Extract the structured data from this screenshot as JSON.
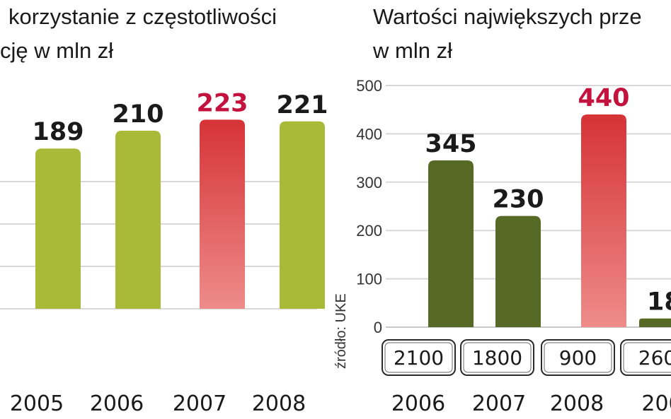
{
  "colors": {
    "olive": "#a9b938",
    "olive_top": "#c2cf55",
    "dark_olive": "#566a26",
    "dark_olive_top": "#6f8236",
    "red": "#d63336",
    "red_light": "#ee8c8a",
    "red_label": "#c4123f"
  },
  "chart_data": [
    {
      "type": "bar",
      "title_lines": [
        "korzystanie z częstotliwości",
        "cję w mln zł"
      ],
      "categories": [
        "2005",
        "2006",
        "2007",
        "2008"
      ],
      "values": [
        189,
        210,
        223,
        221
      ],
      "value_labels": [
        "189",
        "210",
        "223",
        "221"
      ],
      "highlight_index": 2,
      "ylim": [
        0,
        240
      ],
      "grid": true
    },
    {
      "type": "bar",
      "title_lines": [
        "Wartości największych prze",
        "w mln zł"
      ],
      "categories": [
        "2006",
        "2007",
        "2008",
        "200"
      ],
      "values": [
        345,
        230,
        440,
        18
      ],
      "value_labels": [
        "345",
        "230",
        "440",
        "18,"
      ],
      "box_labels": [
        "2100",
        "1800",
        "900",
        "260"
      ],
      "highlight_index": 2,
      "yticks": [
        "0",
        "100",
        "200",
        "300",
        "400",
        "500"
      ],
      "ylim": [
        0,
        500
      ],
      "grid": true,
      "source": "źródło: UKE"
    }
  ]
}
